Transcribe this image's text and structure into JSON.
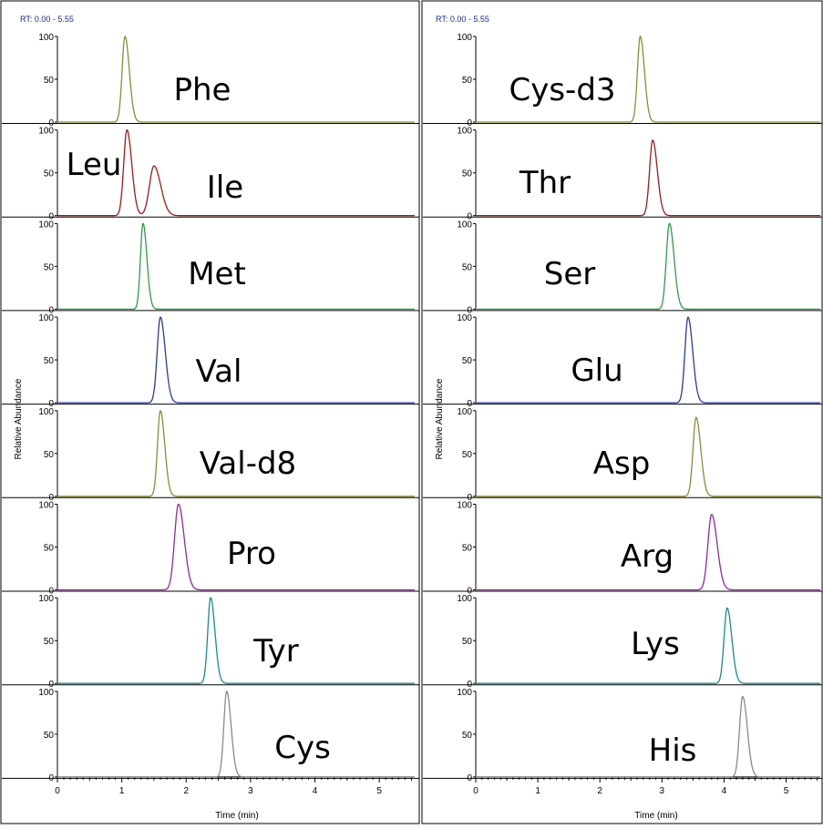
{
  "panels": [
    {
      "rt_label": "RT: 0.00 - 5.55",
      "y_axis_label": "Relative Abundance",
      "x_axis_label": "Time (min)"
    },
    {
      "rt_label": "RT: 0.00 - 5.55",
      "y_axis_label": "Relative Abundance",
      "x_axis_label": "Time (min)"
    }
  ],
  "chart_data": [
    {
      "type": "line",
      "x_range": [
        0,
        5.55
      ],
      "y_range": [
        0,
        100
      ],
      "x_ticks": [
        0,
        1,
        2,
        3,
        4,
        5
      ],
      "y_ticks": [
        0,
        50,
        100
      ],
      "xlabel": "Time (min)",
      "ylabel": "Relative Abundance",
      "traces": [
        {
          "name": "Phe",
          "color": "#8b8b3a",
          "peaks": [
            {
              "rt": 1.05,
              "height": 100,
              "width": 0.045
            }
          ]
        },
        {
          "name": "Leu",
          "color": "#9a1b1b",
          "peaks": [
            {
              "rt": 1.08,
              "height": 100,
              "width": 0.05
            },
            {
              "rt": 1.5,
              "height": 58,
              "width": 0.07
            }
          ]
        },
        {
          "name": "Ile",
          "color": "#9a1b1b",
          "peaks": []
        },
        {
          "name": "Met",
          "color": "#2e9a4a",
          "peaks": [
            {
              "rt": 1.33,
              "height": 100,
              "width": 0.04
            }
          ]
        },
        {
          "name": "Val",
          "color": "#2b3a9a",
          "peaks": [
            {
              "rt": 1.6,
              "height": 100,
              "width": 0.05
            }
          ]
        },
        {
          "name": "Val-d8",
          "color": "#8b8b3a",
          "peaks": [
            {
              "rt": 1.6,
              "height": 100,
              "width": 0.045
            }
          ]
        },
        {
          "name": "Pro",
          "color": "#8a2b9a",
          "peaks": [
            {
              "rt": 1.88,
              "height": 100,
              "width": 0.06
            }
          ]
        },
        {
          "name": "Tyr",
          "color": "#1b8a8a",
          "peaks": [
            {
              "rt": 2.38,
              "height": 100,
              "width": 0.045
            }
          ]
        },
        {
          "name": "Cys",
          "color": "#8a8a8a",
          "peaks": [
            {
              "rt": 2.63,
              "height": 100,
              "width": 0.045
            }
          ]
        }
      ]
    },
    {
      "type": "line",
      "x_range": [
        0,
        5.55
      ],
      "y_range": [
        0,
        100
      ],
      "x_ticks": [
        0,
        1,
        2,
        3,
        4,
        5
      ],
      "y_ticks": [
        0,
        50,
        100
      ],
      "xlabel": "Time (min)",
      "ylabel": "Relative Abundance",
      "traces": [
        {
          "name": "Cys-d3",
          "color": "#8b8b3a",
          "peaks": [
            {
              "rt": 2.65,
              "height": 100,
              "width": 0.045
            }
          ]
        },
        {
          "name": "Thr",
          "color": "#9a1b1b",
          "peaks": [
            {
              "rt": 2.85,
              "height": 88,
              "width": 0.05
            }
          ]
        },
        {
          "name": "Ser",
          "color": "#2e9a4a",
          "peaks": [
            {
              "rt": 3.12,
              "height": 100,
              "width": 0.05
            }
          ]
        },
        {
          "name": "Glu",
          "color": "#2b3a9a",
          "peaks": [
            {
              "rt": 3.42,
              "height": 100,
              "width": 0.05
            }
          ]
        },
        {
          "name": "Asp",
          "color": "#8b8b3a",
          "peaks": [
            {
              "rt": 3.55,
              "height": 92,
              "width": 0.05
            }
          ]
        },
        {
          "name": "Arg",
          "color": "#8a2b9a",
          "peaks": [
            {
              "rt": 3.8,
              "height": 88,
              "width": 0.06
            }
          ]
        },
        {
          "name": "Lys",
          "color": "#1b8a8a",
          "peaks": [
            {
              "rt": 4.05,
              "height": 88,
              "width": 0.05
            }
          ]
        },
        {
          "name": "His",
          "color": "#8a8a8a",
          "peaks": [
            {
              "rt": 4.3,
              "height": 94,
              "width": 0.05
            }
          ]
        }
      ]
    }
  ]
}
